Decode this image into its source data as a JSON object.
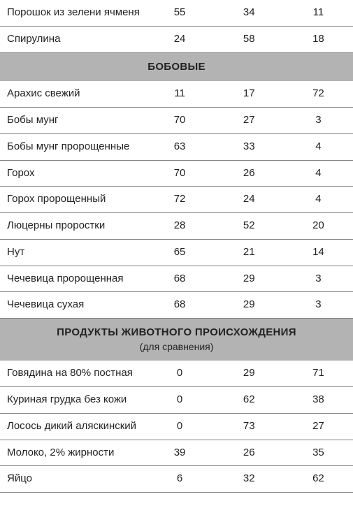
{
  "table": {
    "type": "table",
    "column_types": [
      "name",
      "number",
      "number",
      "number"
    ],
    "section_bg": "#b3b3b3",
    "border_color": "#808080",
    "text_color": "#222222",
    "rows": [
      {
        "kind": "data",
        "name": "Порошок из зелени ячменя",
        "v1": "55",
        "v2": "34",
        "v3": "11"
      },
      {
        "kind": "data",
        "name": "Спирулина",
        "v1": "24",
        "v2": "58",
        "v3": "18"
      },
      {
        "kind": "section",
        "title": "БОБОВЫЕ",
        "subtitle": ""
      },
      {
        "kind": "data",
        "name": "Арахис свежий",
        "v1": "11",
        "v2": "17",
        "v3": "72"
      },
      {
        "kind": "data",
        "name": "Бобы мунг",
        "v1": "70",
        "v2": "27",
        "v3": "3"
      },
      {
        "kind": "data",
        "name": "Бобы мунг пророщенные",
        "v1": "63",
        "v2": "33",
        "v3": "4"
      },
      {
        "kind": "data",
        "name": "Горох",
        "v1": "70",
        "v2": "26",
        "v3": "4"
      },
      {
        "kind": "data",
        "name": "Горох пророщенный",
        "v1": "72",
        "v2": "24",
        "v3": "4"
      },
      {
        "kind": "data",
        "name": "Люцерны проростки",
        "v1": "28",
        "v2": "52",
        "v3": "20"
      },
      {
        "kind": "data",
        "name": "Нут",
        "v1": "65",
        "v2": "21",
        "v3": "14"
      },
      {
        "kind": "data",
        "name": "Чечевица пророщенная",
        "v1": "68",
        "v2": "29",
        "v3": "3"
      },
      {
        "kind": "data",
        "name": "Чечевица сухая",
        "v1": "68",
        "v2": "29",
        "v3": "3"
      },
      {
        "kind": "section",
        "title": "ПРОДУКТЫ ЖИВОТНОГО ПРОИСХОЖДЕНИЯ",
        "subtitle": "(для сравнения)"
      },
      {
        "kind": "data",
        "name": "Говядина на 80% постная",
        "v1": "0",
        "v2": "29",
        "v3": "71"
      },
      {
        "kind": "data",
        "name": "Куриная грудка без кожи",
        "v1": "0",
        "v2": "62",
        "v3": "38"
      },
      {
        "kind": "data",
        "name": "Лосось дикий аляскинский",
        "v1": "0",
        "v2": "73",
        "v3": "27"
      },
      {
        "kind": "data",
        "name": "Молоко, 2% жирности",
        "v1": "39",
        "v2": "26",
        "v3": "35"
      },
      {
        "kind": "data",
        "name": "Яйцо",
        "v1": "6",
        "v2": "32",
        "v3": "62"
      }
    ]
  }
}
